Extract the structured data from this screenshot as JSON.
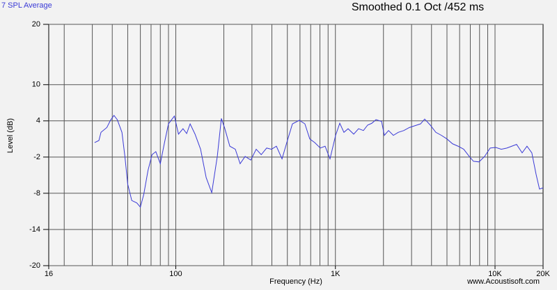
{
  "chart_data": {
    "type": "line",
    "title": "Smoothed 0.1 Oct /452 ms",
    "x_label": "Frequency (Hz)",
    "y_label": "Level (dB)",
    "credit": "www.Acoustisoft.com",
    "log_x": true,
    "grid": true,
    "xlim": [
      16,
      20000
    ],
    "ylim": [
      -20,
      20
    ],
    "xticks": [
      16,
      100,
      {
        "value": 1000,
        "label": "1K"
      },
      {
        "value": 10000,
        "label": "10K"
      },
      {
        "value": 20000,
        "label": "20K"
      }
    ],
    "xgrid": [
      20,
      30,
      40,
      50,
      60,
      70,
      80,
      90,
      100,
      200,
      300,
      400,
      500,
      600,
      700,
      800,
      900,
      1000,
      2000,
      3000,
      4000,
      5000,
      6000,
      7000,
      8000,
      9000,
      10000
    ],
    "yticks": [
      20,
      10,
      4,
      -2,
      -8,
      -14,
      -20
    ],
    "x": [
      31,
      33,
      34,
      37,
      39,
      41,
      43,
      46,
      48,
      50,
      53,
      57,
      60,
      63,
      67,
      71,
      75,
      80,
      85,
      90,
      98,
      104,
      111,
      117,
      123,
      132,
      143,
      155,
      168,
      182,
      193,
      203,
      218,
      236,
      253,
      272,
      295,
      319,
      343,
      371,
      398,
      427,
      463,
      496,
      538,
      595,
      644,
      691,
      742,
      804,
      862,
      925,
      1003,
      1065,
      1131,
      1201,
      1302,
      1397,
      1498,
      1592,
      1691,
      1796,
      1947,
      2026,
      2152,
      2307,
      2476,
      2683,
      2907,
      3150,
      3414,
      3625,
      3929,
      4258,
      4614,
      5000,
      5419,
      5872,
      6364,
      6896,
      7326,
      7939,
      8604,
      9324,
      10104,
      10949,
      11865,
      12725,
      13646,
      14788,
      15858,
      17007,
      18061,
      18992,
      20000
    ],
    "series": [
      {
        "name": "7 SPL Average",
        "color": "#3a3ad6",
        "values": [
          0.4,
          0.75,
          2.1,
          2.9,
          4.1,
          4.9,
          4.2,
          2.1,
          -1.9,
          -6.5,
          -9.2,
          -9.6,
          -10.3,
          -8.2,
          -4.2,
          -1.6,
          -1.1,
          -3.1,
          0.4,
          3.5,
          4.8,
          1.8,
          2.7,
          1.9,
          3.5,
          1.8,
          -0.7,
          -5.4,
          -7.9,
          -1.9,
          4.4,
          2.7,
          -0.2,
          -0.7,
          -3.1,
          -1.9,
          -2.5,
          -0.7,
          -1.6,
          -0.5,
          -0.7,
          -0.2,
          -2.3,
          0.4,
          3.5,
          4.1,
          3.5,
          1.0,
          0.4,
          -0.5,
          -0.2,
          -2.3,
          1.6,
          3.6,
          2.1,
          2.7,
          1.8,
          2.7,
          2.4,
          3.3,
          3.6,
          4.2,
          3.9,
          1.6,
          2.4,
          1.6,
          2.1,
          2.4,
          2.9,
          3.2,
          3.5,
          4.3,
          3.3,
          2.1,
          1.6,
          1.0,
          0.2,
          -0.2,
          -0.7,
          -1.9,
          -2.7,
          -2.8,
          -1.9,
          -0.5,
          -0.4,
          -0.7,
          -0.5,
          -0.2,
          0.1,
          -1.3,
          -0.2,
          -1.3,
          -4.8,
          -7.3,
          -7.1
        ]
      }
    ]
  }
}
